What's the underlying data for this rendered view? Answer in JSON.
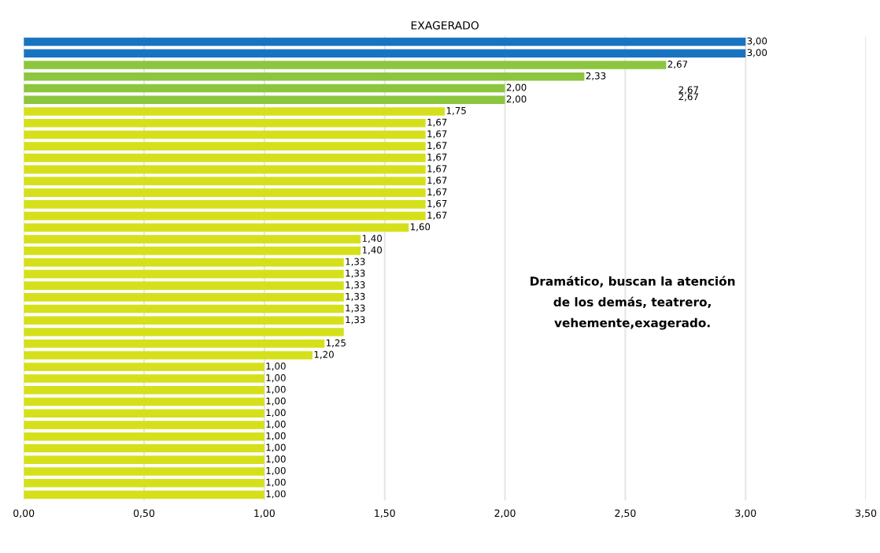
{
  "chart_data": {
    "type": "bar",
    "orientation": "horizontal",
    "title": "EXAGERADO",
    "categories": [
      null,
      null,
      null,
      null,
      null,
      null,
      null,
      null,
      null,
      null,
      null,
      null,
      null,
      null,
      null,
      null,
      null,
      null,
      null,
      null,
      null,
      null,
      null,
      null,
      null,
      null,
      null,
      null,
      null,
      null,
      null,
      null,
      null,
      null,
      null,
      null,
      null,
      null,
      null,
      null
    ],
    "values": [
      3.0,
      3.0,
      2.67,
      2.33,
      2.0,
      2.0,
      1.75,
      1.67,
      1.67,
      1.67,
      1.67,
      1.67,
      1.67,
      1.67,
      1.67,
      1.67,
      1.6,
      1.4,
      1.4,
      1.33,
      1.33,
      1.33,
      1.33,
      1.33,
      1.33,
      1.33,
      1.25,
      1.2,
      1.0,
      1.0,
      1.0,
      1.0,
      1.0,
      1.0,
      1.0,
      1.0,
      1.0,
      1.0,
      1.0,
      1.0
    ],
    "value_labels": [
      "3,00",
      "3,00",
      "2,67",
      "2,33",
      "2,00",
      "2,00",
      "1,75",
      "1,67",
      "1,67",
      "1,67",
      "1,67",
      "1,67",
      "1,67",
      "1,67",
      "1,67",
      "1,67",
      "1,60",
      "1,40",
      "1,40",
      "1,33",
      "1,33",
      "1,33",
      "1,33",
      "1,33",
      "1,33",
      null,
      "1,25",
      "1,20",
      "1,00",
      "1,00",
      "1,00",
      "1,00",
      "1,00",
      "1,00",
      "1,00",
      "1,00",
      "1,00",
      "1,00",
      "1,00",
      "1,00"
    ],
    "colors": [
      "#1874c1",
      "#1874c1",
      "#8cc63e",
      "#8cc63e",
      "#8cc63e",
      "#8cc63e",
      "#d5e01b",
      "#d5e01b",
      "#d5e01b",
      "#d5e01b",
      "#d5e01b",
      "#d5e01b",
      "#d5e01b",
      "#d5e01b",
      "#d5e01b",
      "#d5e01b",
      "#d5e01b",
      "#d5e01b",
      "#d5e01b",
      "#d5e01b",
      "#d5e01b",
      "#d5e01b",
      "#d5e01b",
      "#d5e01b",
      "#d5e01b",
      "#d5e01b",
      "#d5e01b",
      "#d5e01b",
      "#d5e01b",
      "#d5e01b",
      "#d5e01b",
      "#d5e01b",
      "#d5e01b",
      "#d5e01b",
      "#d5e01b",
      "#d5e01b",
      "#d5e01b",
      "#d5e01b",
      "#d5e01b",
      "#d5e01b"
    ],
    "xlim": [
      0,
      3.5
    ],
    "xticks": [
      {
        "value": 0,
        "label": "0,00"
      },
      {
        "value": 0.5,
        "label": "0,50"
      },
      {
        "value": 1,
        "label": "1,00"
      },
      {
        "value": 1.5,
        "label": "1,50"
      },
      {
        "value": 2,
        "label": "2,00"
      },
      {
        "value": 2.5,
        "label": "2,50"
      },
      {
        "value": 3,
        "label": "3,00"
      },
      {
        "value": 3.5,
        "label": "3,50"
      }
    ],
    "grid": "x",
    "annotations": [
      "2,67",
      "2,67",
      "Dramático, buscan la atención\nde los demás, teatrero,\nvehemente,exagerado."
    ]
  }
}
